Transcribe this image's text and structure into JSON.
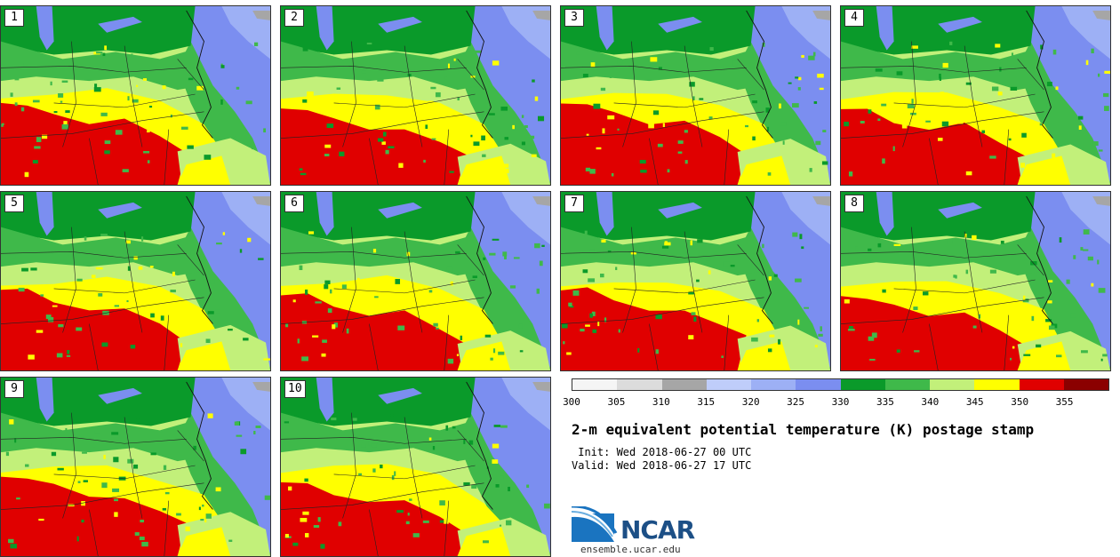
{
  "panels": [
    {
      "num": "1"
    },
    {
      "num": "2"
    },
    {
      "num": "3"
    },
    {
      "num": "4"
    },
    {
      "num": "5"
    },
    {
      "num": "6"
    },
    {
      "num": "7"
    },
    {
      "num": "8"
    },
    {
      "num": "9"
    },
    {
      "num": "10"
    }
  ],
  "colorbar": {
    "colors": [
      "#f5f5f5",
      "#dcdcdc",
      "#a6a6a6",
      "#bfcdfa",
      "#9db0f5",
      "#7b8ef0",
      "#0a9a2a",
      "#3fb94a",
      "#c2f07a",
      "#ffff00",
      "#e00000",
      "#8b0000"
    ],
    "ticks": [
      "300",
      "305",
      "310",
      "315",
      "320",
      "325",
      "330",
      "335",
      "340",
      "345",
      "350",
      "355"
    ]
  },
  "title": "2-m equivalent potential temperature (K) postage stamp",
  "init": " Init: Wed 2018-06-27 00 UTC",
  "valid": "Valid: Wed 2018-06-27 17 UTC",
  "logo": {
    "name": "NCAR",
    "site": "ensemble.ucar.edu"
  }
}
